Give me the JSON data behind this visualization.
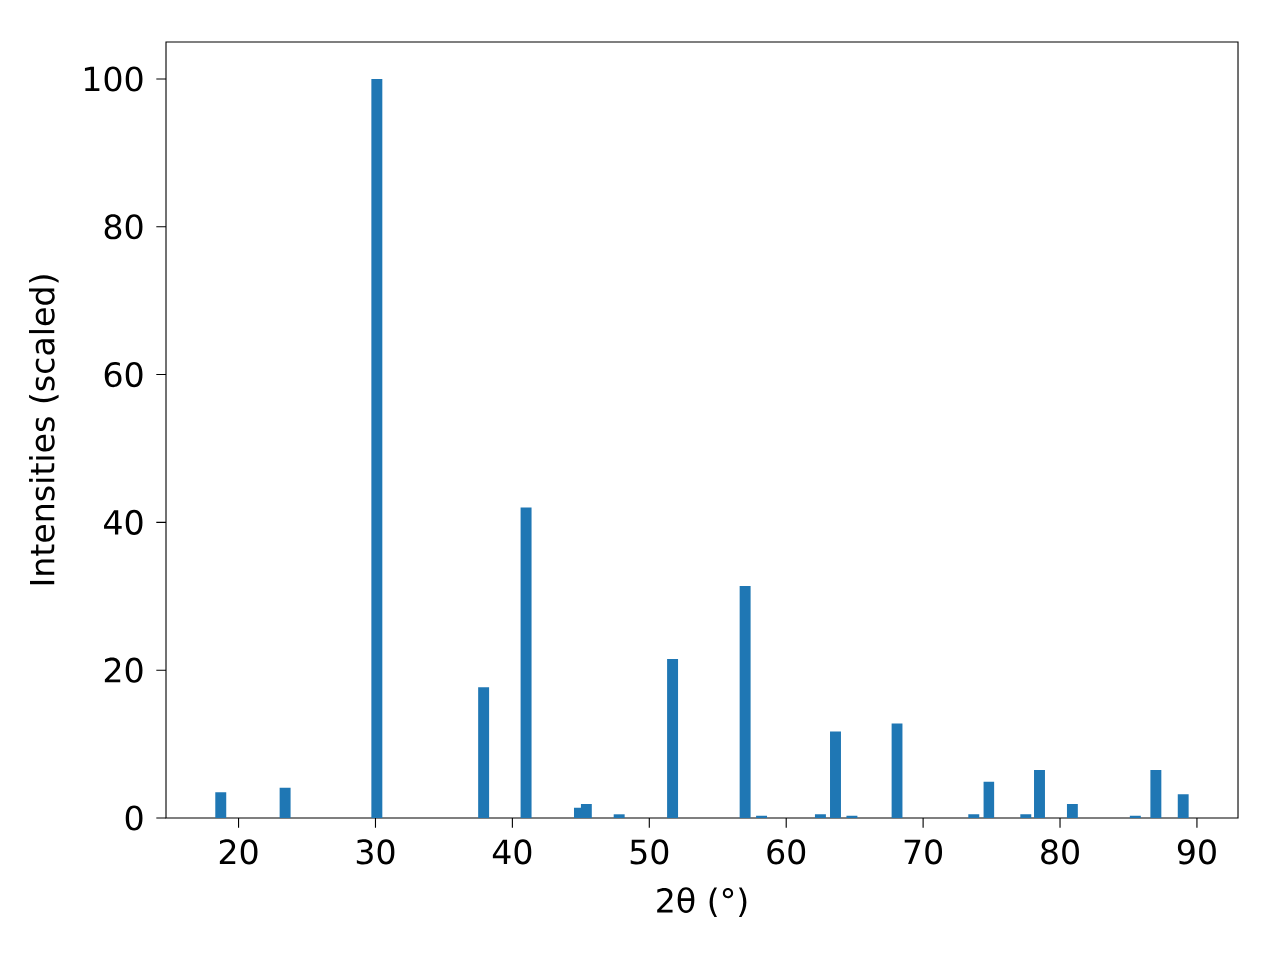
{
  "chart_data": {
    "type": "bar",
    "xlabel": "2θ (°)",
    "ylabel": "Intensities (scaled)",
    "x": [
      18.7,
      23.4,
      30.1,
      37.9,
      41.0,
      44.9,
      45.4,
      47.8,
      51.7,
      57.0,
      58.2,
      62.5,
      63.6,
      64.8,
      68.1,
      73.7,
      74.8,
      77.5,
      78.5,
      80.9,
      85.5,
      87.0,
      89.0
    ],
    "values": [
      3.5,
      4.1,
      100,
      17.7,
      42,
      1.4,
      1.9,
      0.5,
      21.5,
      31.4,
      0.3,
      0.5,
      11.7,
      0.3,
      12.8,
      0.5,
      4.9,
      0.5,
      6.5,
      1.9,
      0.3,
      6.5,
      3.2
    ],
    "color": "#1f77b4",
    "xlim": [
      14.7,
      93.0
    ],
    "ylim": [
      0,
      105
    ],
    "xticks": [
      20,
      30,
      40,
      50,
      60,
      70,
      80,
      90
    ],
    "yticks": [
      0,
      20,
      40,
      60,
      80,
      100
    ],
    "grid": false
  }
}
